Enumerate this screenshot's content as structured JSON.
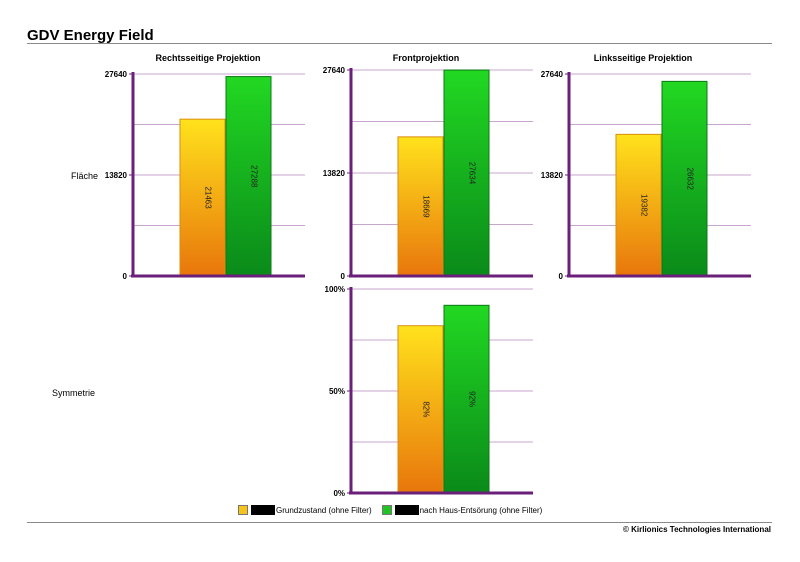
{
  "title": "GDV Energy Field",
  "row_labels": {
    "area": "Fläche",
    "symmetry": "Symmetrie"
  },
  "legend": {
    "items": [
      {
        "label": "Grundzustand (ohne Filter)",
        "color": "#f7c21a"
      },
      {
        "label": "nach Haus-Entsörung (ohne Filter)",
        "color": "#22c222"
      }
    ]
  },
  "copyright": "© Kirlionics Technologies International",
  "colors": {
    "axis": "#6a1f7a",
    "grid": "#c9a6cf",
    "yellow_top": "#ffe21c",
    "yellow_bottom": "#e8760c",
    "green_top": "#22d822",
    "green_bottom": "#0a8a1a"
  },
  "chart_data": [
    {
      "type": "bar",
      "title": "Rechtsseitige Projektion",
      "series": [
        {
          "name": "Grundzustand (ohne Filter)",
          "values": [
            21463
          ]
        },
        {
          "name": "nach Haus-Entsörung (ohne Filter)",
          "values": [
            27288
          ]
        }
      ],
      "ylim": [
        0,
        27640
      ],
      "yticks": [
        "0",
        "13820",
        "27640"
      ],
      "data_labels": [
        "21463",
        "27288"
      ]
    },
    {
      "type": "bar",
      "title": "Frontprojektion",
      "series": [
        {
          "name": "Grundzustand (ohne Filter)",
          "values": [
            18669
          ]
        },
        {
          "name": "nach Haus-Entsörung (ohne Filter)",
          "values": [
            27634
          ]
        }
      ],
      "ylim": [
        0,
        27640
      ],
      "yticks": [
        "0",
        "13820",
        "27640"
      ],
      "data_labels": [
        "18669",
        "27634"
      ]
    },
    {
      "type": "bar",
      "title": "Linksseitige Projektion",
      "series": [
        {
          "name": "Grundzustand (ohne Filter)",
          "values": [
            19382
          ]
        },
        {
          "name": "nach Haus-Entsörung (ohne Filter)",
          "values": [
            26632
          ]
        }
      ],
      "ylim": [
        0,
        27640
      ],
      "yticks": [
        "0",
        "13820",
        "27640"
      ],
      "data_labels": [
        "19382",
        "26632"
      ]
    },
    {
      "type": "bar",
      "title": "",
      "series": [
        {
          "name": "Grundzustand (ohne Filter)",
          "values": [
            82
          ]
        },
        {
          "name": "nach Haus-Entsörung (ohne Filter)",
          "values": [
            92
          ]
        }
      ],
      "ylim": [
        0,
        100
      ],
      "yticks": [
        "0%",
        "50%",
        "100%"
      ],
      "data_labels": [
        "82%",
        "92%"
      ]
    }
  ]
}
